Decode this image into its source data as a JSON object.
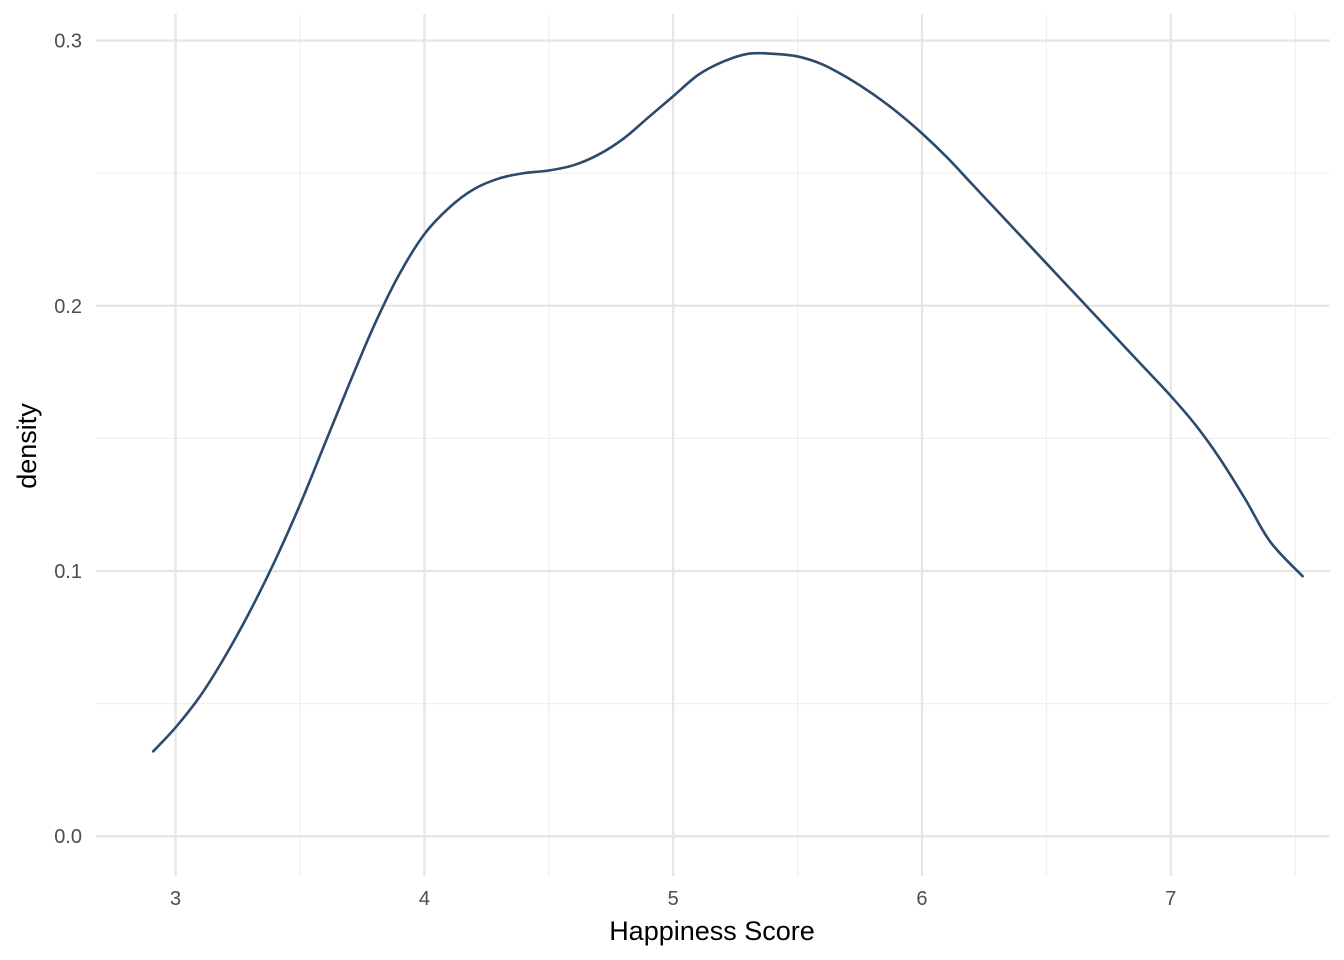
{
  "chart_data": {
    "type": "line",
    "xlabel": "Happiness Score",
    "ylabel": "density",
    "xlim": [
      2.68,
      7.64
    ],
    "ylim": [
      -0.015,
      0.31
    ],
    "x_ticks": [
      3,
      4,
      5,
      6,
      7
    ],
    "x_tick_labels": [
      "3",
      "4",
      "5",
      "6",
      "7"
    ],
    "x_minor_ticks": [
      3.5,
      4.5,
      5.5,
      6.5,
      7.5
    ],
    "y_ticks": [
      0,
      0.1,
      0.2,
      0.3
    ],
    "y_tick_labels": [
      "0.0",
      "0.1",
      "0.2",
      "0.3"
    ],
    "y_minor_ticks": [
      0.05,
      0.15,
      0.25
    ],
    "grid": true,
    "series": [
      {
        "color": "#2c4a6b",
        "x": [
          2.91,
          3.0,
          3.1,
          3.2,
          3.3,
          3.4,
          3.5,
          3.6,
          3.7,
          3.8,
          3.9,
          4.0,
          4.1,
          4.2,
          4.3,
          4.4,
          4.5,
          4.6,
          4.7,
          4.8,
          4.9,
          5.0,
          5.1,
          5.2,
          5.3,
          5.4,
          5.5,
          5.6,
          5.7,
          5.8,
          5.9,
          6.0,
          6.1,
          6.2,
          6.3,
          6.4,
          6.5,
          6.6,
          6.7,
          6.8,
          6.9,
          7.0,
          7.1,
          7.2,
          7.3,
          7.4,
          7.53
        ],
        "y": [
          0.032,
          0.041,
          0.053,
          0.068,
          0.085,
          0.104,
          0.125,
          0.148,
          0.171,
          0.193,
          0.212,
          0.227,
          0.237,
          0.244,
          0.248,
          0.25,
          0.251,
          0.253,
          0.257,
          0.263,
          0.271,
          0.279,
          0.287,
          0.292,
          0.295,
          0.295,
          0.294,
          0.291,
          0.286,
          0.28,
          0.273,
          0.265,
          0.256,
          0.246,
          0.236,
          0.226,
          0.216,
          0.206,
          0.196,
          0.186,
          0.176,
          0.166,
          0.155,
          0.142,
          0.127,
          0.111,
          0.098
        ]
      }
    ]
  }
}
